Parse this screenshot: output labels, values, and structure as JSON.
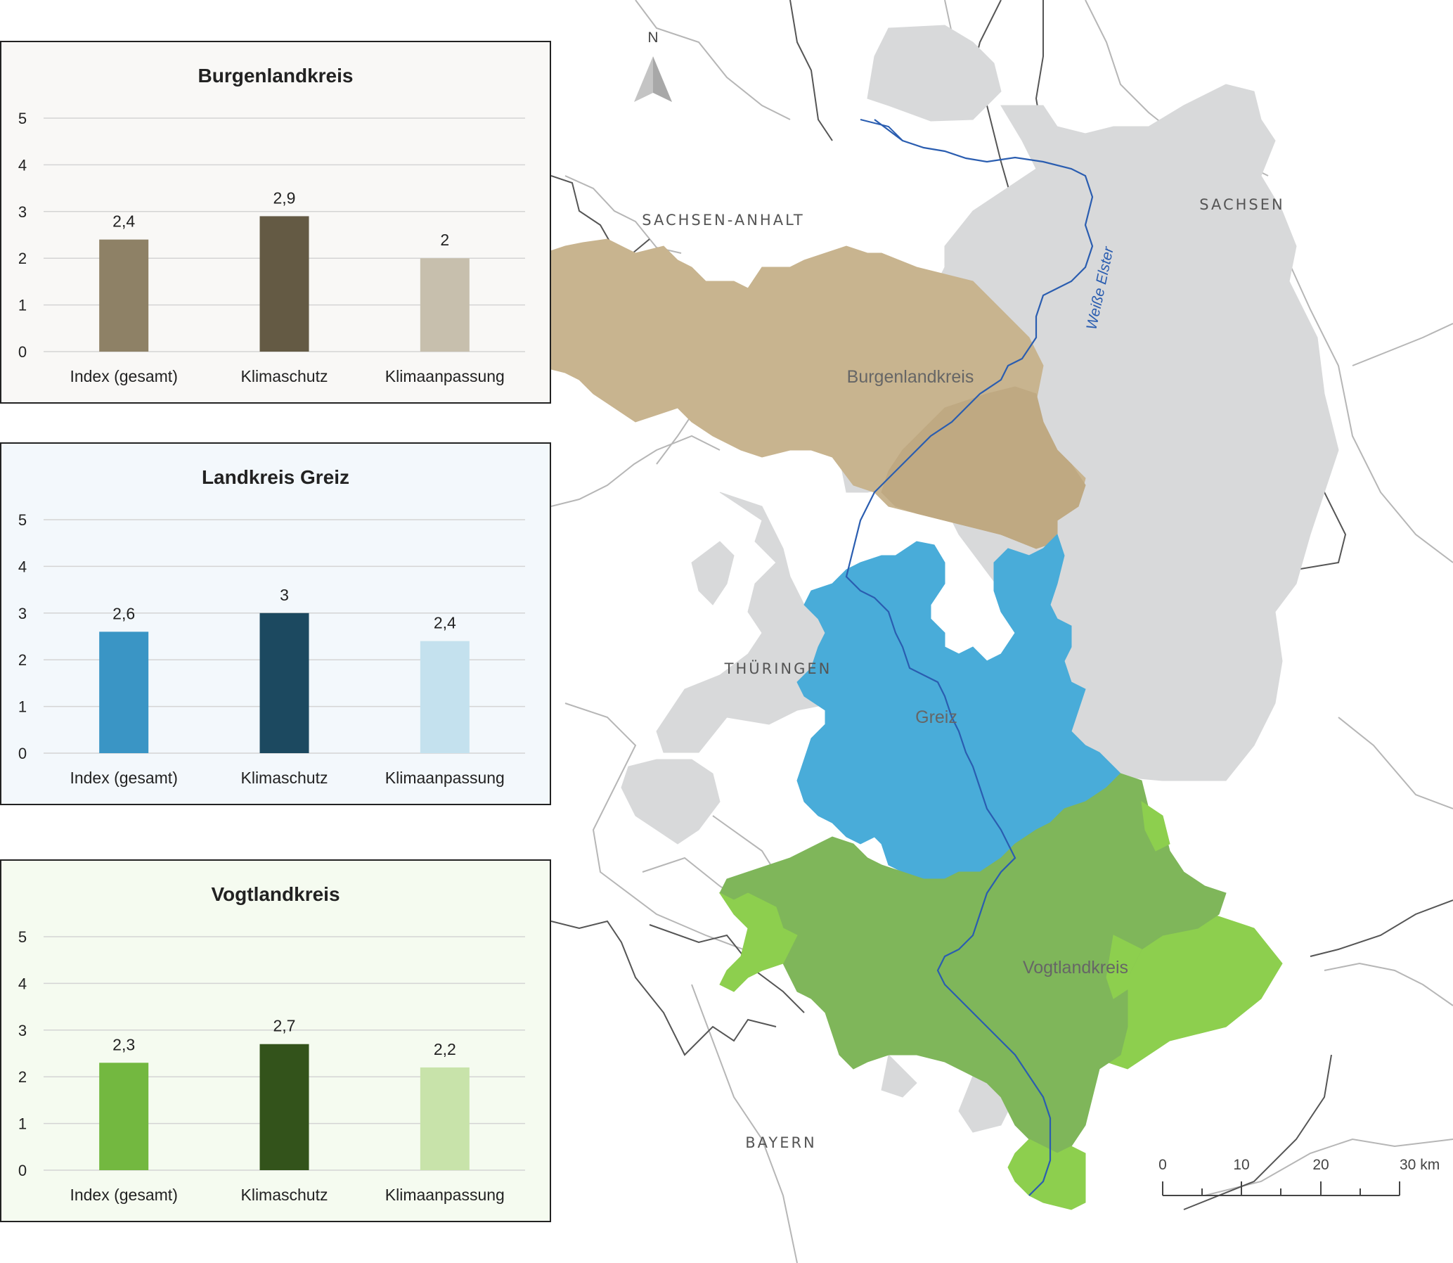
{
  "colors": {
    "burgenlandkreis": [
      "#8e8166",
      "#645a44",
      "#c7bfad"
    ],
    "greiz": [
      "#3a95c5",
      "#1c4960",
      "#c4e1ee"
    ],
    "vogtlandkreis": [
      "#73b840",
      "#33531b",
      "#c8e3aa"
    ],
    "map_burgenlandkreis": "#c8b48f",
    "map_greiz": "#49acd9",
    "map_vogtlandkreis": "#7fb65a",
    "map_vogtlandkreis_light": "#8dcf4e",
    "map_other": "#d8d9da",
    "river": "#2a5db0"
  },
  "chart_data": [
    {
      "type": "bar",
      "title": "Burgenlandkreis",
      "categories": [
        "Index (gesamt)",
        "Klimaschutz",
        "Klimaanpassung"
      ],
      "values": [
        2.4,
        2.9,
        2
      ],
      "value_labels": [
        "2,4",
        "2,9",
        "2"
      ],
      "ylim": [
        0,
        5
      ],
      "yticks": [
        "0",
        "1",
        "2",
        "3",
        "4",
        "5"
      ],
      "grid": true
    },
    {
      "type": "bar",
      "title": "Landkreis Greiz",
      "categories": [
        "Index (gesamt)",
        "Klimaschutz",
        "Klimaanpassung"
      ],
      "values": [
        2.6,
        3,
        2.4
      ],
      "value_labels": [
        "2,6",
        "3",
        "2,4"
      ],
      "ylim": [
        0,
        5
      ],
      "yticks": [
        "0",
        "1",
        "2",
        "3",
        "4",
        "5"
      ],
      "grid": true
    },
    {
      "type": "bar",
      "title": "Vogtlandkreis",
      "categories": [
        "Index (gesamt)",
        "Klimaschutz",
        "Klimaanpassung"
      ],
      "values": [
        2.3,
        2.7,
        2.2
      ],
      "value_labels": [
        "2,3",
        "2,7",
        "2,2"
      ],
      "ylim": [
        0,
        5
      ],
      "yticks": [
        "0",
        "1",
        "2",
        "3",
        "4",
        "5"
      ],
      "grid": true
    }
  ],
  "map": {
    "north_label": "N",
    "states": {
      "sachsen_anhalt": "SACHSEN-ANHALT",
      "sachsen": "SACHSEN",
      "thueringen": "THÜRINGEN",
      "bayern": "BAYERN"
    },
    "regions": {
      "burgenlandkreis": "Burgenlandkreis",
      "greiz": "Greiz",
      "vogtlandkreis": "Vogtlandkreis"
    },
    "river_label": "Weiße Elster",
    "scale_labels": [
      "0",
      "10",
      "20",
      "30 km"
    ]
  }
}
